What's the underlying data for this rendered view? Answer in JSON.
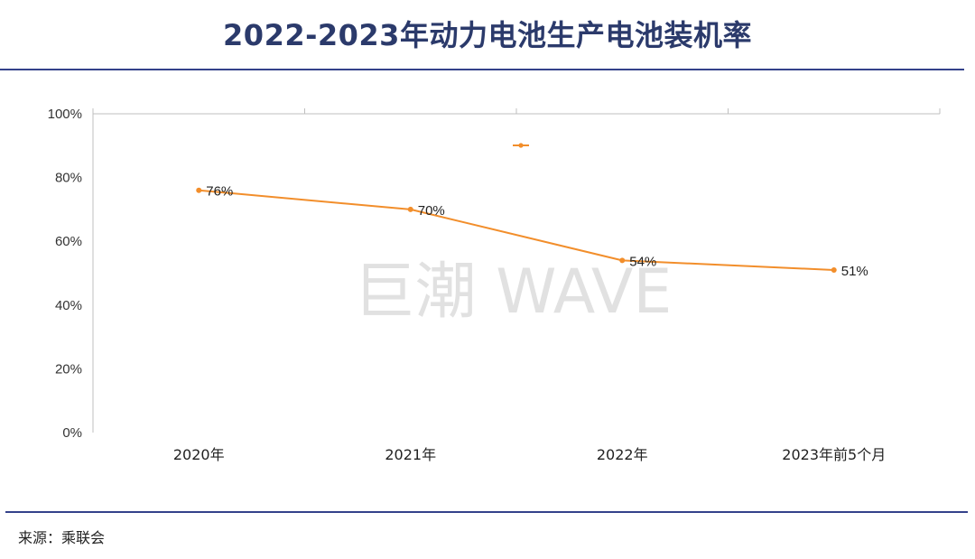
{
  "header": {
    "title": "2022-2023年动力电池生产电池装机率"
  },
  "footer": {
    "source": "来源：乘联会"
  },
  "watermark": {
    "text": "巨潮 WAVE"
  },
  "colors": {
    "series": "#F28E2B",
    "title": "#2B3A6B",
    "rule": "#34428A",
    "axis": "#BFBFBF"
  },
  "chart_data": {
    "type": "line",
    "title": "2022-2023年动力电池生产电池装机率",
    "xlabel": "",
    "ylabel": "",
    "categories": [
      "2020年",
      "2021年",
      "2022年",
      "2023年前5个月"
    ],
    "series": [
      {
        "name": "",
        "values": [
          76,
          70,
          54,
          51
        ],
        "labels": [
          "76%",
          "70%",
          "54%",
          "51%"
        ]
      }
    ],
    "ylim": [
      0,
      100
    ],
    "yticks": [
      0,
      20,
      40,
      60,
      80,
      100
    ],
    "ytick_labels": [
      "0%",
      "20%",
      "40%",
      "60%",
      "80%",
      "100%"
    ],
    "grid": false,
    "legend": "top-center"
  }
}
